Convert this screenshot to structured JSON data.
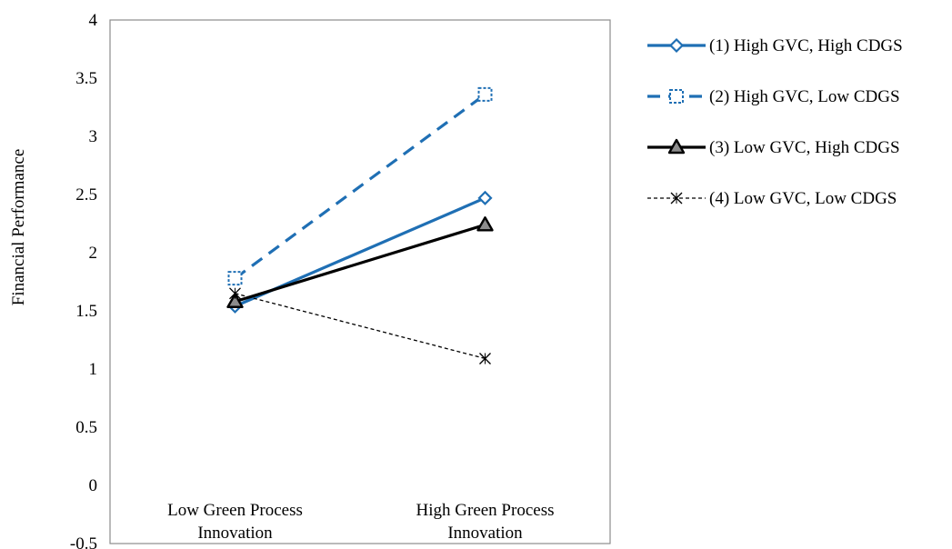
{
  "chart_data": {
    "type": "line",
    "ylabel": "Financial Performance",
    "xlabel": "",
    "ylim": [
      -0.5,
      4
    ],
    "y_ticks": [
      "-0.5",
      "0",
      "0.5",
      "1",
      "1.5",
      "2",
      "2.5",
      "3",
      "3.5",
      "4"
    ],
    "categories": [
      [
        "Low Green Process",
        "Innovation"
      ],
      [
        "High Green Process",
        "Innovation"
      ]
    ],
    "grid": false,
    "legend_position": "right",
    "series": [
      {
        "name": "(1) High GVC, High CDGS",
        "values": [
          1.54,
          2.47
        ],
        "color": "#1f6fb4",
        "line_style": "solid",
        "marker": "diamond-open"
      },
      {
        "name": "(2) High GVC, Low CDGS",
        "values": [
          1.78,
          3.36
        ],
        "color": "#1f6fb4",
        "line_style": "dashed",
        "marker": "square-open"
      },
      {
        "name": "(3) Low GVC, High CDGS",
        "values": [
          1.58,
          2.24
        ],
        "color": "#000000",
        "line_style": "solid",
        "marker": "triangle-gray"
      },
      {
        "name": "(4) Low GVC, Low CDGS",
        "values": [
          1.65,
          1.09
        ],
        "color": "#000000",
        "line_style": "dotted",
        "marker": "x"
      }
    ]
  }
}
